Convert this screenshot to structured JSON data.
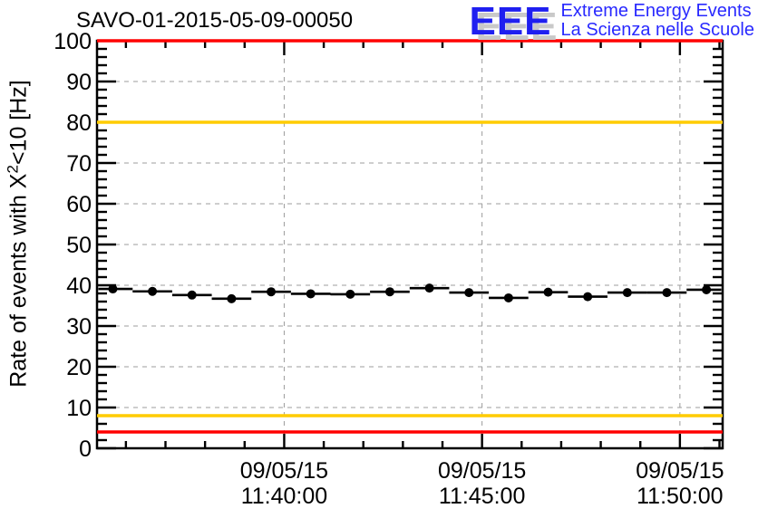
{
  "header": {
    "title": "SAVO-01-2015-05-09-00050"
  },
  "logo": {
    "acronym": "EEE",
    "line1": "Extreme Energy Events",
    "line2": "La Scienza nelle Scuole",
    "text_color": "#2929ff",
    "shadow_color": "#c9c9c9"
  },
  "chart_data": {
    "type": "scatter",
    "title": "SAVO-01-2015-05-09-00050",
    "ylabel": "Rate of events with X²<10 [Hz]",
    "ylabel_parts": {
      "pre": "Rate of events with X",
      "sup": "2",
      "post": "<10 [Hz]"
    },
    "ylim": [
      0,
      100
    ],
    "y_major_step": 10,
    "y_minor_step": 2,
    "y_tick_labels": [
      "0",
      "10",
      "20",
      "30",
      "40",
      "50",
      "60",
      "70",
      "80",
      "90",
      "100"
    ],
    "x_unit": "minutes relative to 11:40:00",
    "xlim": [
      -4.73,
      11.08
    ],
    "x_minor_step_min": 1,
    "x_tick_labels": [
      {
        "date": "09/05/15",
        "time": "11:40:00",
        "minute": 0
      },
      {
        "date": "09/05/15",
        "time": "11:45:00",
        "minute": 5
      },
      {
        "date": "09/05/15",
        "time": "11:50:00",
        "minute": 10
      }
    ],
    "grid": {
      "show": true,
      "color": "#9c9c9c",
      "dash": "5 5"
    },
    "series": [
      {
        "name": "rate-of-events",
        "marker": "filled-circle",
        "color": "#000000",
        "bin_halfwidth_min": 0.5,
        "t_min": [
          -4.33,
          -3.33,
          -2.33,
          -1.33,
          -0.33,
          0.67,
          1.67,
          2.67,
          3.67,
          4.67,
          5.67,
          6.67,
          7.67,
          8.67,
          9.67,
          10.67
        ],
        "rate_hz": [
          39.1,
          38.5,
          37.6,
          36.7,
          38.4,
          37.9,
          37.8,
          38.4,
          39.3,
          38.2,
          36.9,
          38.3,
          37.2,
          38.2,
          38.2,
          38.9
        ]
      }
    ],
    "threshold_lines": [
      {
        "value_hz": 100,
        "color": "#ff0000"
      },
      {
        "value_hz": 80,
        "color": "#ffcc00"
      },
      {
        "value_hz": 8,
        "color": "#ffcc00"
      },
      {
        "value_hz": 4,
        "color": "#ff0000"
      }
    ],
    "legend": null
  }
}
